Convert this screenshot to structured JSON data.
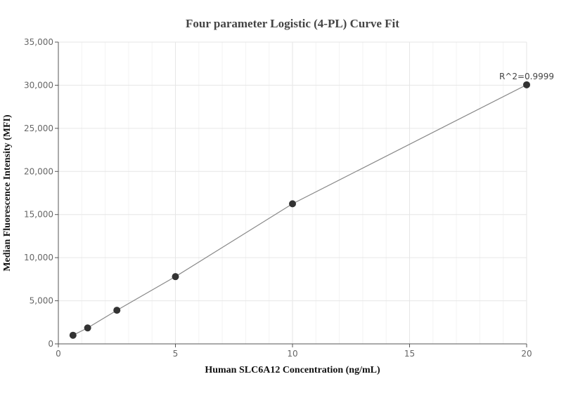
{
  "chart_data": {
    "type": "scatter",
    "title": "Four parameter Logistic (4-PL) Curve Fit",
    "xlabel": "Human SLC6A12 Concentration (ng/mL)",
    "ylabel": "Median Fluorescence Intensity (MFI)",
    "xlim": [
      0,
      20
    ],
    "ylim": [
      0,
      35000
    ],
    "x_ticks": [
      0,
      5,
      10,
      15,
      20
    ],
    "x_tick_labels": [
      "0",
      "5",
      "10",
      "15",
      "20"
    ],
    "y_ticks": [
      0,
      5000,
      10000,
      15000,
      20000,
      25000,
      30000,
      35000
    ],
    "y_tick_labels": [
      "0",
      "5,000",
      "10,000",
      "15,000",
      "20,000",
      "25,000",
      "30,000",
      "35,000"
    ],
    "grid": true,
    "series": [
      {
        "x": [
          0.625,
          1.25,
          2.5,
          5,
          10,
          20
        ],
        "y": [
          1000,
          1850,
          3900,
          7800,
          16250,
          30050
        ]
      }
    ],
    "fit_curve": true,
    "colors": {
      "points": "#333333",
      "fit_line": "#888888"
    },
    "annotation": {
      "text": "R^2=0.9999",
      "x": 20,
      "y": 30050
    }
  }
}
